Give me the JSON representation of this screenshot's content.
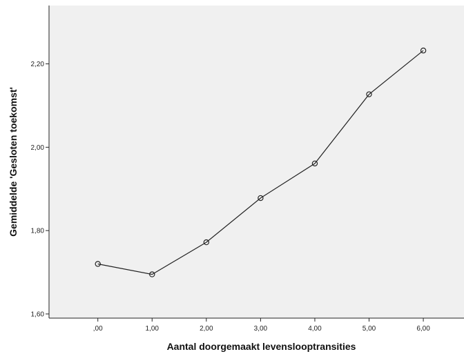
{
  "chart_data": {
    "type": "line",
    "title": "",
    "xlabel": "Aantal doorgemaakt levenslooptransities",
    "ylabel": "Gemiddelde 'Gesloten toekomst'",
    "x": [
      0,
      1,
      2,
      3,
      4,
      5,
      6
    ],
    "x_tick_labels": [
      ",00",
      "1,00",
      "2,00",
      "3,00",
      "4,00",
      "5,00",
      "6,00"
    ],
    "series": [
      {
        "name": "",
        "values": [
          1.72,
          1.695,
          1.772,
          1.878,
          1.961,
          2.127,
          2.232
        ]
      }
    ],
    "y_ticks": [
      1.6,
      1.8,
      2.0,
      2.2
    ],
    "y_tick_labels": [
      "1,60",
      "1,80",
      "2,00",
      "2,20"
    ],
    "xlim": [
      -0.9,
      6.75
    ],
    "ylim": [
      1.59,
      2.34
    ],
    "grid": false,
    "legend": "none",
    "colors": {
      "plot_background": "#f0f0f0",
      "line": "#222222",
      "marker_edge": "#222222",
      "axis": "#222222"
    },
    "marker": "open-circle"
  }
}
